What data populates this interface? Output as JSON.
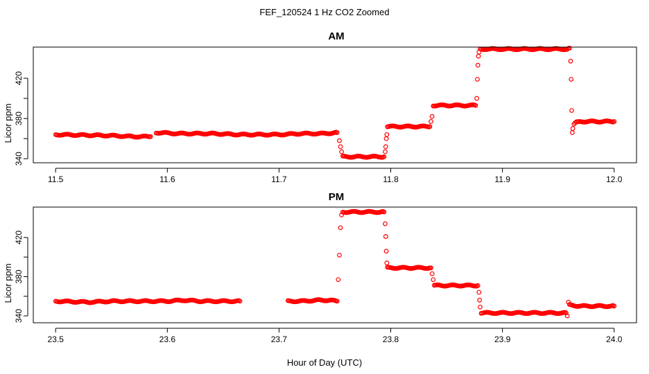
{
  "figure": {
    "title": "FEF_120524  1 Hz CO2 Zoomed",
    "xlabel": "Hour of Day (UTC)"
  },
  "style": {
    "point_color": "#ff0000",
    "axis_color": "#000000",
    "background": "#ffffff"
  },
  "chart_data": [
    {
      "type": "scatter",
      "title": "AM",
      "ylabel": "Licor ppm",
      "xlim": [
        11.48,
        12.02
      ],
      "ylim": [
        336,
        451
      ],
      "xticks": [
        "11.5",
        "11.6",
        "11.7",
        "11.8",
        "11.9",
        "12.0"
      ],
      "yticks": [
        "340",
        "360",
        "380",
        "400",
        "420"
      ],
      "yticks_labeled": [
        "340",
        "380",
        "420"
      ],
      "series": [
        {
          "marker": "open-circle",
          "segments": [
            {
              "x": [
                11.5,
                11.55,
                11.57,
                11.585
              ],
              "y": [
                364,
                363,
                362,
                362
              ]
            },
            {
              "x": [
                11.59,
                11.61,
                11.64,
                11.665,
                11.68,
                11.7,
                11.72,
                11.74,
                11.752
              ],
              "y": [
                366,
                365,
                365,
                364,
                364,
                364,
                365,
                365,
                366
              ]
            },
            {
              "x": [
                11.754,
                11.755,
                11.756
              ],
              "y": [
                358,
                352,
                347
              ]
            },
            {
              "x": [
                11.757,
                11.77,
                11.785,
                11.794
              ],
              "y": [
                342,
                342,
                342,
                342
              ]
            },
            {
              "x": [
                11.795,
                11.7955,
                11.796,
                11.7965
              ],
              "y": [
                347,
                352,
                360,
                364
              ]
            },
            {
              "x": [
                11.797,
                11.81,
                11.82,
                11.835
              ],
              "y": [
                372,
                372,
                372,
                372
              ]
            },
            {
              "x": [
                11.836,
                11.837
              ],
              "y": [
                377,
                382
              ]
            },
            {
              "x": [
                11.838,
                11.85,
                11.86,
                11.876
              ],
              "y": [
                393,
                393,
                393,
                393
              ]
            },
            {
              "x": [
                11.877,
                11.8775,
                11.878,
                11.8785,
                11.879
              ],
              "y": [
                400,
                419,
                433,
                442,
                446
              ]
            },
            {
              "x": [
                11.88,
                11.9,
                11.92,
                11.94,
                11.958,
                11.96
              ],
              "y": [
                449,
                449,
                449,
                449,
                449,
                450
              ]
            },
            {
              "x": [
                11.961,
                11.9615,
                11.962,
                11.9625
              ],
              "y": [
                437,
                419,
                388,
                366
              ]
            },
            {
              "x": [
                11.963,
                11.964,
                11.966,
                11.97,
                11.98,
                11.99,
                12.0
              ],
              "y": [
                370,
                374,
                376,
                377,
                377,
                377,
                377
              ]
            }
          ]
        }
      ]
    },
    {
      "type": "scatter",
      "title": "PM",
      "ylabel": "Licor ppm",
      "xlim": [
        23.48,
        24.02
      ],
      "ylim": [
        333,
        451
      ],
      "xticks": [
        "23.5",
        "23.6",
        "23.7",
        "23.8",
        "23.9",
        "24.0"
      ],
      "yticks": [
        "340",
        "360",
        "380",
        "400",
        "420"
      ],
      "yticks_labeled": [
        "340",
        "380",
        "420"
      ],
      "series": [
        {
          "marker": "open-circle",
          "segments": [
            {
              "x": [
                23.5,
                23.53,
                23.55,
                23.58,
                23.6,
                23.615,
                23.63,
                23.65,
                23.665
              ],
              "y": [
                355,
                354,
                355,
                355,
                355,
                356,
                355,
                355,
                355
              ]
            },
            {
              "x": [
                23.708,
                23.72,
                23.735,
                23.745,
                23.752
              ],
              "y": [
                355,
                355,
                356,
                356,
                355
              ]
            },
            {
              "x": [
                23.753,
                23.754,
                23.755,
                23.756
              ],
              "y": [
                377,
                402,
                430,
                443
              ]
            },
            {
              "x": [
                23.757,
                23.77,
                23.785,
                23.794
              ],
              "y": [
                446,
                446,
                446,
                446
              ]
            },
            {
              "x": [
                23.795,
                23.7955,
                23.796,
                23.7965
              ],
              "y": [
                434,
                421,
                406,
                394
              ]
            },
            {
              "x": [
                23.797,
                23.81,
                23.825,
                23.836
              ],
              "y": [
                389,
                389,
                389,
                389
              ]
            },
            {
              "x": [
                23.837,
                23.838
              ],
              "y": [
                383,
                377
              ]
            },
            {
              "x": [
                23.839,
                23.85,
                23.865,
                23.878
              ],
              "y": [
                371,
                371,
                371,
                371
              ]
            },
            {
              "x": [
                23.879,
                23.8795,
                23.88
              ],
              "y": [
                364,
                356,
                349
              ]
            },
            {
              "x": [
                23.881,
                23.9,
                23.92,
                23.94,
                23.957
              ],
              "y": [
                343,
                343,
                343,
                343,
                343
              ]
            },
            {
              "x": [
                23.958,
                23.959
              ],
              "y": [
                340,
                354
              ]
            },
            {
              "x": [
                23.96,
                23.97,
                23.98,
                23.99,
                24.0
              ],
              "y": [
                351,
                350,
                350,
                350,
                350
              ]
            }
          ]
        }
      ]
    }
  ]
}
